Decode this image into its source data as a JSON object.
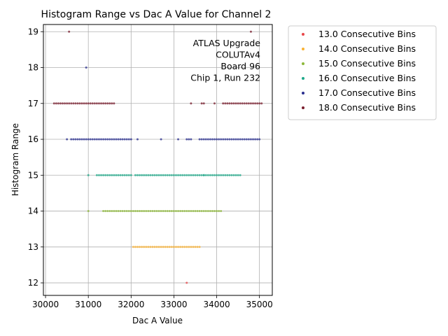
{
  "chart_data": {
    "type": "scatter",
    "title": "Histogram Range vs Dac A Value for Channel 2",
    "xlabel": "Dac A Value",
    "ylabel": "Histogram Range",
    "xlim": [
      29950,
      35300
    ],
    "ylim": [
      11.65,
      19.2
    ],
    "xticks": [
      30000,
      31000,
      32000,
      33000,
      34000,
      35000
    ],
    "yticks": [
      12,
      13,
      14,
      15,
      16,
      17,
      18,
      19
    ],
    "grid": true,
    "legend_position": "outside-right",
    "annotation": [
      "ATLAS Upgrade",
      "COLUTAv4",
      "Board 96",
      "Chip 1, Run 232"
    ],
    "series": [
      {
        "name": "13.0 Consecutive Bins",
        "color": "#e8474a",
        "points": [
          [
            33300,
            12
          ]
        ]
      },
      {
        "name": "14.0 Consecutive Bins",
        "color": "#f9b233",
        "x_ranges": [
          [
            32050,
            33600
          ]
        ],
        "y": 13
      },
      {
        "name": "15.0 Consecutive Bins",
        "color": "#8db83a",
        "x_ranges": [
          [
            31000,
            31000
          ],
          [
            31350,
            31950
          ],
          [
            32000,
            34100
          ]
        ],
        "y": 14
      },
      {
        "name": "16.0 Consecutive Bins",
        "color": "#1fa98a",
        "x_ranges": [
          [
            31000,
            31000
          ],
          [
            31200,
            32000
          ],
          [
            32100,
            33700
          ],
          [
            33700,
            34550
          ]
        ],
        "y": 15
      },
      {
        "name": "17.0 Consecutive Bins",
        "color": "#2a2f8f",
        "x_ranges": [
          [
            30500,
            30500
          ],
          [
            30600,
            32000
          ],
          [
            32150,
            32150
          ],
          [
            32700,
            32700
          ],
          [
            33100,
            33100
          ],
          [
            33300,
            33400
          ],
          [
            33600,
            35000
          ]
        ],
        "y": 16,
        "extra_points": [
          [
            30950,
            18
          ]
        ]
      },
      {
        "name": "18.0 Consecutive Bins",
        "color": "#7a1e2e",
        "x_ranges": [
          [
            30200,
            31600
          ],
          [
            33400,
            33400
          ],
          [
            33650,
            33700
          ],
          [
            33950,
            33950
          ],
          [
            34150,
            35050
          ]
        ],
        "y": 17,
        "extra_points": [
          [
            30550,
            19
          ],
          [
            34800,
            19
          ]
        ]
      }
    ]
  }
}
